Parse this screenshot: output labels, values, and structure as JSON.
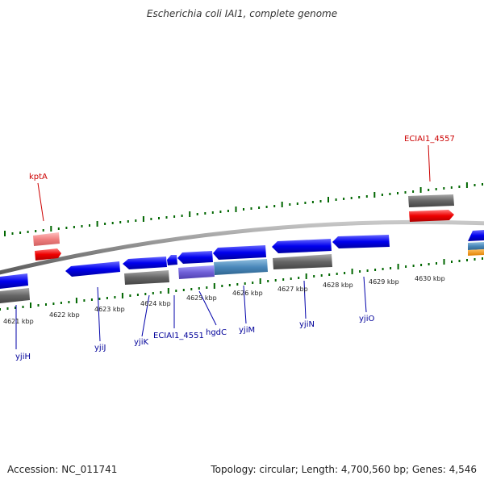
{
  "header": {
    "title": "Escherichia coli IAI1, complete genome"
  },
  "footer": {
    "accession": "Accession: NC_011741",
    "topology": "Topology: circular; Length: 4,700,560 bp; Genes: 4,546"
  },
  "scale": {
    "ticks": [
      {
        "label": "4621 kbp"
      },
      {
        "label": "4622 kbp"
      },
      {
        "label": "4623 kbp"
      },
      {
        "label": "4624 kbp"
      },
      {
        "label": "4625 kbp"
      },
      {
        "label": "4626 kbp"
      },
      {
        "label": "4627 kbp"
      },
      {
        "label": "4628 kbp"
      },
      {
        "label": "4629 kbp"
      },
      {
        "label": "4630 kbp"
      }
    ]
  },
  "genes": {
    "forward": [
      {
        "label": "kptA"
      },
      {
        "label": "ECIAI1_4557"
      }
    ],
    "reverse": [
      {
        "label": "yjiH"
      },
      {
        "label": "yjiJ"
      },
      {
        "label": "yjiK"
      },
      {
        "label": "ECIAI1_4551"
      },
      {
        "label": "hgdC"
      },
      {
        "label": "yjiM"
      },
      {
        "label": "yjiN"
      },
      {
        "label": "yjiO"
      }
    ]
  },
  "colors": {
    "cds": "#0000ee",
    "gene": "#666666",
    "forward_label": "#cc0000",
    "reverse_label": "#000099",
    "backbone": "#8a8a8a",
    "ticks": "#006600"
  }
}
